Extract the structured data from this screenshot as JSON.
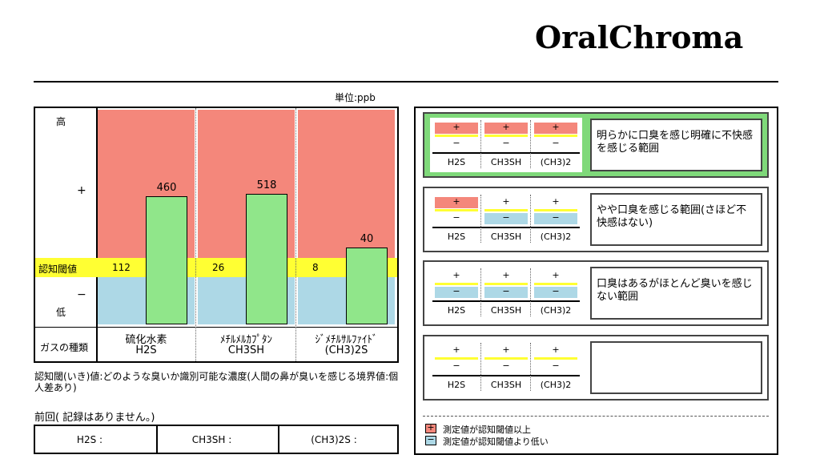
{
  "header": {
    "brand": "OralChroma"
  },
  "unit": "単位:ppb",
  "chart_data": {
    "type": "bar",
    "log_scale": true,
    "axis_labels": {
      "high": "高",
      "plus": "+",
      "threshold": "認知閾値",
      "minus": "−",
      "low": "低",
      "gas_type": "ガスの種類"
    },
    "categories": [
      "H2S",
      "CH3SH",
      "(CH3)2S"
    ],
    "category_names": [
      "硫化水素",
      "ﾒﾁﾙﾒﾙｶﾌﾟﾀﾝ",
      "ｼﾞﾒﾁﾙｻﾙﾌｧｲﾄﾞ"
    ],
    "values": [
      460,
      518,
      40
    ],
    "thresholds": [
      112,
      26,
      8
    ],
    "color": "#90e68a",
    "above_color": "#f4877b",
    "below_color": "#add8e6",
    "threshold_color": "#ffff33"
  },
  "note": "認知閾(いき)値:どのような臭いか識別可能な濃度(人間の鼻が臭いを感じる境界値:個人差あり)",
  "previous": {
    "title": "前回( 記録はありません。)",
    "labels": [
      "H2S :",
      "CH3SH :",
      "(CH3)2S :"
    ]
  },
  "levels": {
    "columns": [
      "H2S",
      "CH3SH",
      "(CH3)2"
    ],
    "plus": "+",
    "minus": "−",
    "panels": [
      {
        "active": true,
        "above": [
          true,
          true,
          true
        ],
        "description": "明らかに口臭を感じ明確に不快感を感じる範囲"
      },
      {
        "active": false,
        "above": [
          true,
          false,
          false
        ],
        "description": "やや口臭を感じる範囲(さほど不快感はない)"
      },
      {
        "active": false,
        "above": [
          false,
          false,
          false
        ],
        "description": "口臭はあるがほとんど臭いを感じない範囲"
      },
      {
        "active": false,
        "above": [
          null,
          null,
          null
        ]
      }
    ],
    "legend": [
      "測定値が認知閾値以上",
      "測定値が認知閾値より低い"
    ]
  }
}
